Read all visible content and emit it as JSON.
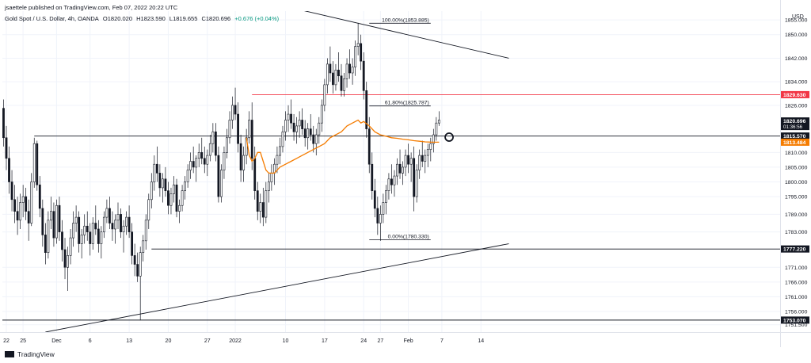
{
  "header": {
    "publisher_line": "jsaettele published on TradingView.com, Feb 07, 2022 20:22 UTC"
  },
  "symbol": {
    "name": "Gold Spot / U.S. Dollar, 4h, OANDA",
    "open": "O1820.020",
    "high": "H1823.590",
    "low": "L1819.655",
    "close": "C1820.696",
    "change": "+0.676 (+0.04%)"
  },
  "footer": {
    "brand": "TradingView"
  },
  "colors": {
    "candle": "#131722",
    "ma": "#f57c00",
    "resistance_red": "#f23645",
    "last_price_bg": "#131722",
    "grid": "#f0f3fa"
  },
  "chart_data": {
    "type": "candlestick",
    "currency_label": "USD",
    "ylim": [
      1749,
      1858
    ],
    "x_ticks": [
      {
        "label": "22",
        "day": -10
      },
      {
        "label": "25",
        "day": -7
      },
      {
        "label": "Dec",
        "day": -1
      },
      {
        "label": "6",
        "day": 5
      },
      {
        "label": "13",
        "day": 12
      },
      {
        "label": "20",
        "day": 19
      },
      {
        "label": "27",
        "day": 26
      },
      {
        "label": "2022",
        "day": 31
      },
      {
        "label": "10",
        "day": 40
      },
      {
        "label": "17",
        "day": 47
      },
      {
        "label": "24",
        "day": 54
      },
      {
        "label": "27",
        "day": 57
      },
      {
        "label": "Feb",
        "day": 62
      },
      {
        "label": "7",
        "day": 68
      },
      {
        "label": "14",
        "day": 75
      }
    ],
    "y_ticks": [
      1751.5,
      1756.0,
      1761.0,
      1766.0,
      1771.0,
      1783.0,
      1789.0,
      1795.0,
      1800.0,
      1805.0,
      1810.0,
      1826.0,
      1834.0,
      1842.0,
      1850.0,
      1855.0
    ],
    "price_labels": [
      {
        "value": 1829.63,
        "text": "1829.630",
        "style": "red"
      },
      {
        "value": 1820.696,
        "text": "1820.696",
        "style": "dark",
        "sub": "01:36:56"
      },
      {
        "value": 1815.57,
        "text": "1815.570",
        "style": "dark"
      },
      {
        "value": 1813.484,
        "text": "1813.484",
        "style": "orange"
      },
      {
        "value": 1777.22,
        "text": "1777.220",
        "style": "dark"
      },
      {
        "value": 1753.07,
        "text": "1753.070",
        "style": "dark"
      }
    ],
    "fib_levels": [
      {
        "text": "100.00%(1853.885)",
        "value": 1853.885,
        "from_day": 55,
        "to_day": 66
      },
      {
        "text": "61.80%(1825.787)",
        "value": 1825.787,
        "from_day": 55,
        "to_day": 66
      },
      {
        "text": "0.00%(1780.330)",
        "value": 1780.33,
        "from_day": 55,
        "to_day": 66
      }
    ],
    "horizontal_levels": [
      {
        "value": 1815.57,
        "from_day": -5,
        "to_day": 80,
        "color": "#131722"
      },
      {
        "value": 1777.22,
        "from_day": 16,
        "to_day": 80,
        "color": "#131722"
      },
      {
        "value": 1753.07,
        "from_day": -12,
        "to_day": 80,
        "color": "#131722"
      },
      {
        "value": 1829.63,
        "from_day": 34,
        "to_day": 80,
        "color": "#f23645"
      }
    ],
    "trend_lines": [
      {
        "from": [
          9.5,
          1873
        ],
        "to": [
          80,
          1842
        ],
        "color": "#131722"
      },
      {
        "from": [
          -3,
          1749
        ],
        "to": [
          80,
          1779
        ],
        "color": "#131722"
      }
    ],
    "marker_circle": {
      "day": 69.3,
      "value": 1815.2
    },
    "ohlc": [
      [
        -12.5,
        1847,
        1849,
        1840,
        1843
      ],
      [
        -12.0,
        1843,
        1847,
        1839,
        1845
      ],
      [
        -11.5,
        1845,
        1846,
        1830,
        1833
      ],
      [
        -11.0,
        1833,
        1836,
        1822,
        1825
      ],
      [
        -10.5,
        1825,
        1828,
        1812,
        1815
      ],
      [
        -10.0,
        1815,
        1819,
        1804,
        1808
      ],
      [
        -9.5,
        1808,
        1812,
        1796,
        1800
      ],
      [
        -9.0,
        1800,
        1804,
        1790,
        1794
      ],
      [
        -8.5,
        1794,
        1799,
        1786,
        1790
      ],
      [
        -8.0,
        1790,
        1795,
        1782,
        1787
      ],
      [
        -7.5,
        1787,
        1796,
        1784,
        1793
      ],
      [
        -7.0,
        1793,
        1799,
        1788,
        1795
      ],
      [
        -6.5,
        1795,
        1798,
        1787,
        1790
      ],
      [
        -6.0,
        1790,
        1794,
        1780,
        1786
      ],
      [
        -5.5,
        1786,
        1803,
        1785,
        1800
      ],
      [
        -5.0,
        1800,
        1815,
        1798,
        1813
      ],
      [
        -4.5,
        1813,
        1814,
        1797,
        1799
      ],
      [
        -4.0,
        1799,
        1802,
        1788,
        1791
      ],
      [
        -3.5,
        1791,
        1794,
        1778,
        1782
      ],
      [
        -3.0,
        1782,
        1786,
        1772,
        1776
      ],
      [
        -2.5,
        1776,
        1790,
        1774,
        1787
      ],
      [
        -2.0,
        1787,
        1795,
        1784,
        1790
      ],
      [
        -1.5,
        1790,
        1793,
        1778,
        1781
      ],
      [
        -1.0,
        1781,
        1794,
        1779,
        1792
      ],
      [
        -0.5,
        1792,
        1795,
        1780,
        1783
      ],
      [
        0.0,
        1783,
        1787,
        1773,
        1777
      ],
      [
        0.5,
        1777,
        1781,
        1767,
        1771
      ],
      [
        1.0,
        1771,
        1778,
        1763,
        1775
      ],
      [
        1.5,
        1775,
        1784,
        1772,
        1781
      ],
      [
        2.0,
        1781,
        1790,
        1778,
        1786
      ],
      [
        2.5,
        1786,
        1792,
        1783,
        1788
      ],
      [
        3.0,
        1788,
        1790,
        1776,
        1779
      ],
      [
        3.5,
        1779,
        1784,
        1774,
        1782
      ],
      [
        4.0,
        1782,
        1789,
        1779,
        1785
      ],
      [
        4.5,
        1785,
        1790,
        1780,
        1783
      ],
      [
        5.0,
        1783,
        1786,
        1775,
        1779
      ],
      [
        5.5,
        1779,
        1788,
        1777,
        1786
      ],
      [
        6.0,
        1786,
        1792,
        1782,
        1784
      ],
      [
        6.5,
        1784,
        1787,
        1776,
        1779
      ],
      [
        7.0,
        1779,
        1785,
        1774,
        1783
      ],
      [
        7.5,
        1783,
        1790,
        1781,
        1788
      ],
      [
        8.0,
        1788,
        1794,
        1786,
        1791
      ],
      [
        8.5,
        1791,
        1795,
        1784,
        1786
      ],
      [
        9.0,
        1786,
        1790,
        1780,
        1784
      ],
      [
        9.5,
        1784,
        1789,
        1779,
        1787
      ],
      [
        10.0,
        1787,
        1793,
        1784,
        1789
      ],
      [
        10.5,
        1789,
        1791,
        1781,
        1783
      ],
      [
        11.0,
        1783,
        1787,
        1776,
        1785
      ],
      [
        11.5,
        1785,
        1790,
        1782,
        1788
      ],
      [
        12.0,
        1788,
        1792,
        1781,
        1783
      ],
      [
        12.5,
        1783,
        1786,
        1772,
        1775
      ],
      [
        13.0,
        1775,
        1779,
        1768,
        1772
      ],
      [
        13.5,
        1772,
        1776,
        1766,
        1768
      ],
      [
        14.0,
        1768,
        1778,
        1753,
        1776
      ],
      [
        14.5,
        1776,
        1782,
        1773,
        1780
      ],
      [
        15.0,
        1780,
        1789,
        1777,
        1787
      ],
      [
        15.5,
        1787,
        1796,
        1784,
        1794
      ],
      [
        16.0,
        1794,
        1803,
        1791,
        1800
      ],
      [
        16.5,
        1800,
        1809,
        1797,
        1806
      ],
      [
        17.0,
        1806,
        1812,
        1800,
        1803
      ],
      [
        17.5,
        1803,
        1806,
        1795,
        1798
      ],
      [
        18.0,
        1798,
        1803,
        1793,
        1801
      ],
      [
        18.5,
        1801,
        1805,
        1795,
        1797
      ],
      [
        19.0,
        1797,
        1800,
        1789,
        1792
      ],
      [
        19.5,
        1792,
        1798,
        1789,
        1796
      ],
      [
        20.0,
        1796,
        1802,
        1793,
        1799
      ],
      [
        20.5,
        1799,
        1801,
        1788,
        1790
      ],
      [
        21.0,
        1790,
        1794,
        1786,
        1792
      ],
      [
        21.5,
        1792,
        1799,
        1790,
        1797
      ],
      [
        22.0,
        1797,
        1802,
        1794,
        1800
      ],
      [
        22.5,
        1800,
        1806,
        1798,
        1804
      ],
      [
        23.0,
        1804,
        1810,
        1801,
        1807
      ],
      [
        23.5,
        1807,
        1812,
        1803,
        1805
      ],
      [
        24.0,
        1805,
        1809,
        1800,
        1808
      ],
      [
        24.5,
        1808,
        1813,
        1805,
        1810
      ],
      [
        25.0,
        1810,
        1815,
        1806,
        1808
      ],
      [
        25.5,
        1808,
        1812,
        1803,
        1806
      ],
      [
        26.0,
        1806,
        1811,
        1802,
        1809
      ],
      [
        26.5,
        1809,
        1816,
        1807,
        1813
      ],
      [
        27.0,
        1813,
        1820,
        1810,
        1817
      ],
      [
        27.5,
        1817,
        1820,
        1807,
        1809
      ],
      [
        28.0,
        1809,
        1812,
        1793,
        1795
      ],
      [
        28.5,
        1795,
        1806,
        1793,
        1804
      ],
      [
        29.0,
        1804,
        1812,
        1801,
        1810
      ],
      [
        29.5,
        1810,
        1818,
        1808,
        1815
      ],
      [
        30.0,
        1815,
        1824,
        1813,
        1821
      ],
      [
        30.5,
        1821,
        1829,
        1818,
        1826
      ],
      [
        31.0,
        1826,
        1832,
        1821,
        1823
      ],
      [
        31.5,
        1823,
        1827,
        1810,
        1813
      ],
      [
        32.0,
        1813,
        1816,
        1800,
        1804
      ],
      [
        32.5,
        1804,
        1812,
        1800,
        1809
      ],
      [
        33.0,
        1809,
        1818,
        1806,
        1815
      ],
      [
        33.5,
        1815,
        1824,
        1813,
        1821
      ],
      [
        34.0,
        1821,
        1827,
        1804,
        1808
      ],
      [
        34.5,
        1808,
        1812,
        1794,
        1797
      ],
      [
        35.0,
        1797,
        1800,
        1787,
        1790
      ],
      [
        35.5,
        1790,
        1796,
        1786,
        1793
      ],
      [
        36.0,
        1793,
        1798,
        1785,
        1788
      ],
      [
        36.5,
        1788,
        1800,
        1786,
        1797
      ],
      [
        37.0,
        1797,
        1803,
        1793,
        1800
      ],
      [
        37.5,
        1800,
        1806,
        1797,
        1803
      ],
      [
        38.0,
        1803,
        1808,
        1799,
        1806
      ],
      [
        38.5,
        1806,
        1812,
        1803,
        1809
      ],
      [
        39.0,
        1809,
        1815,
        1806,
        1812
      ],
      [
        39.5,
        1812,
        1819,
        1810,
        1817
      ],
      [
        40.0,
        1817,
        1824,
        1814,
        1821
      ],
      [
        40.5,
        1821,
        1826,
        1817,
        1823
      ],
      [
        41.0,
        1823,
        1828,
        1818,
        1820
      ],
      [
        41.5,
        1820,
        1823,
        1814,
        1817
      ],
      [
        42.0,
        1817,
        1822,
        1813,
        1819
      ],
      [
        42.5,
        1819,
        1824,
        1815,
        1821
      ],
      [
        43.0,
        1821,
        1825,
        1816,
        1818
      ],
      [
        43.5,
        1818,
        1821,
        1812,
        1815
      ],
      [
        44.0,
        1815,
        1820,
        1811,
        1818
      ],
      [
        44.5,
        1818,
        1823,
        1814,
        1816
      ],
      [
        45.0,
        1816,
        1819,
        1810,
        1813
      ],
      [
        45.5,
        1813,
        1818,
        1809,
        1816
      ],
      [
        46.0,
        1816,
        1822,
        1813,
        1820
      ],
      [
        46.5,
        1820,
        1828,
        1817,
        1826
      ],
      [
        47.0,
        1826,
        1835,
        1824,
        1833
      ],
      [
        47.5,
        1833,
        1842,
        1830,
        1840
      ],
      [
        48.0,
        1840,
        1846,
        1834,
        1837
      ],
      [
        48.5,
        1837,
        1841,
        1830,
        1833
      ],
      [
        49.0,
        1833,
        1840,
        1831,
        1838
      ],
      [
        49.5,
        1838,
        1844,
        1834,
        1836
      ],
      [
        50.0,
        1836,
        1840,
        1829,
        1831
      ],
      [
        50.5,
        1831,
        1837,
        1829,
        1835
      ],
      [
        51.0,
        1835,
        1842,
        1832,
        1840
      ],
      [
        51.5,
        1840,
        1845,
        1835,
        1837
      ],
      [
        52.0,
        1837,
        1842,
        1833,
        1839
      ],
      [
        52.5,
        1839,
        1848,
        1836,
        1846
      ],
      [
        53.0,
        1846,
        1854,
        1843,
        1847
      ],
      [
        53.5,
        1847,
        1850,
        1838,
        1841
      ],
      [
        54.0,
        1841,
        1844,
        1828,
        1831
      ],
      [
        54.5,
        1831,
        1834,
        1815,
        1818
      ],
      [
        55.0,
        1818,
        1822,
        1803,
        1806
      ],
      [
        55.5,
        1806,
        1810,
        1794,
        1797
      ],
      [
        56.0,
        1797,
        1801,
        1788,
        1791
      ],
      [
        56.5,
        1791,
        1795,
        1782,
        1786
      ],
      [
        57.0,
        1786,
        1792,
        1780,
        1789
      ],
      [
        57.5,
        1789,
        1796,
        1786,
        1793
      ],
      [
        58.0,
        1793,
        1799,
        1789,
        1797
      ],
      [
        58.5,
        1797,
        1803,
        1794,
        1801
      ],
      [
        59.0,
        1801,
        1806,
        1796,
        1799
      ],
      [
        59.5,
        1799,
        1804,
        1795,
        1802
      ],
      [
        60.0,
        1802,
        1808,
        1799,
        1806
      ],
      [
        60.5,
        1806,
        1811,
        1801,
        1803
      ],
      [
        61.0,
        1803,
        1807,
        1799,
        1805
      ],
      [
        61.5,
        1805,
        1811,
        1802,
        1809
      ],
      [
        62.0,
        1809,
        1813,
        1803,
        1806
      ],
      [
        62.5,
        1806,
        1810,
        1800,
        1808
      ],
      [
        63.0,
        1808,
        1812,
        1790,
        1795
      ],
      [
        63.5,
        1795,
        1806,
        1793,
        1804
      ],
      [
        64.0,
        1804,
        1811,
        1801,
        1809
      ],
      [
        64.5,
        1809,
        1814,
        1805,
        1807
      ],
      [
        65.0,
        1807,
        1811,
        1803,
        1809
      ],
      [
        65.5,
        1809,
        1813,
        1805,
        1811
      ],
      [
        66.0,
        1811,
        1815,
        1807,
        1813
      ],
      [
        66.5,
        1813,
        1818,
        1810,
        1816
      ],
      [
        67.0,
        1816,
        1822,
        1814,
        1820
      ],
      [
        67.5,
        1820,
        1824,
        1819,
        1821
      ]
    ],
    "ma_line": [
      [
        33.0,
        1815
      ],
      [
        33.5,
        1809
      ],
      [
        34.0,
        1807
      ],
      [
        34.5,
        1808
      ],
      [
        35.0,
        1810
      ],
      [
        35.5,
        1810
      ],
      [
        36.0,
        1807
      ],
      [
        36.5,
        1804
      ],
      [
        37.0,
        1803
      ],
      [
        38.0,
        1803
      ],
      [
        39.0,
        1805
      ],
      [
        40.0,
        1806
      ],
      [
        41.0,
        1807
      ],
      [
        42.0,
        1808
      ],
      [
        43.0,
        1809
      ],
      [
        44.0,
        1810
      ],
      [
        45.0,
        1811
      ],
      [
        46.0,
        1812
      ],
      [
        47.0,
        1813
      ],
      [
        48.0,
        1815
      ],
      [
        49.0,
        1816
      ],
      [
        50.0,
        1817
      ],
      [
        51.0,
        1819
      ],
      [
        52.0,
        1820
      ],
      [
        53.0,
        1821
      ],
      [
        53.5,
        1820
      ],
      [
        54.0,
        1820.5
      ],
      [
        55.0,
        1819
      ],
      [
        56.0,
        1817
      ],
      [
        57.0,
        1816
      ],
      [
        58.0,
        1815.5
      ],
      [
        59.0,
        1815
      ],
      [
        60.0,
        1814.8
      ],
      [
        61.0,
        1814.5
      ],
      [
        62.0,
        1814.3
      ],
      [
        63.0,
        1814
      ],
      [
        64.0,
        1813.8
      ],
      [
        65.0,
        1813.6
      ],
      [
        66.0,
        1813.5
      ],
      [
        67.5,
        1813.48
      ]
    ]
  }
}
